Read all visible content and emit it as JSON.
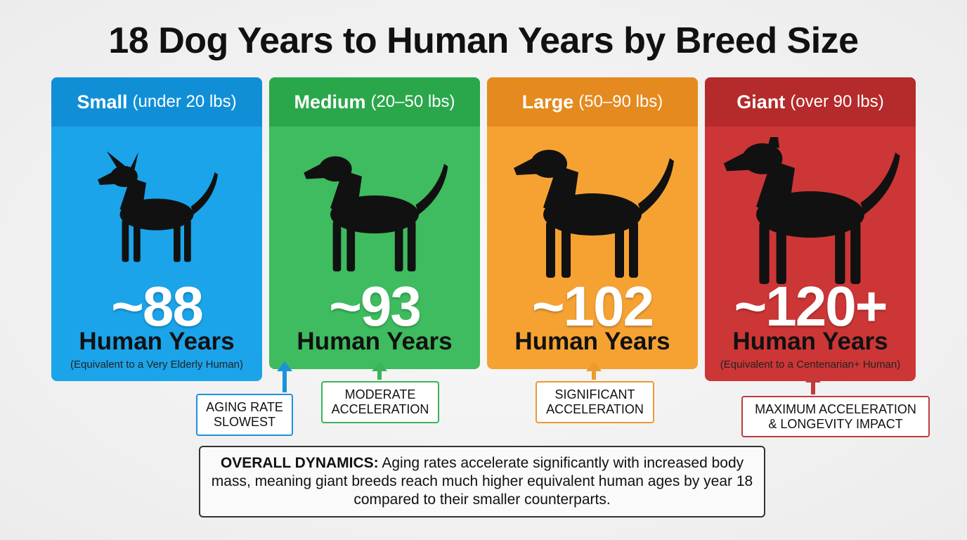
{
  "title": "18 Dog Years to Human Years by Breed Size",
  "cards": [
    {
      "name": "Small",
      "range": "(under 20 lbs)",
      "age": "~88",
      "unit": "Human Years",
      "note": "(Equivalent to a Very Elderly Human)",
      "callout_lines": [
        "AGING RATE",
        "SLOWEST"
      ]
    },
    {
      "name": "Medium",
      "range": "(20–50 lbs)",
      "age": "~93",
      "unit": "Human Years",
      "callout_lines": [
        "MODERATE",
        "ACCELERATION"
      ]
    },
    {
      "name": "Large",
      "range": "(50–90 lbs)",
      "age": "~102",
      "unit": "Human Years",
      "callout_lines": [
        "SIGNIFICANT",
        "ACCELERATION"
      ]
    },
    {
      "name": "Giant",
      "range": "(over 90 lbs)",
      "age": "~120+",
      "unit": "Human Years",
      "note": "(Equivalent to a Centenarian+ Human)",
      "callout_lines": [
        "MAXIMUM ACCELERATION",
        "& LONGEVITY IMPACT"
      ]
    }
  ],
  "summary": {
    "label": "OVERALL DYNAMICS:",
    "text": "Aging rates accelerate significantly with increased body mass, meaning giant breeds reach much higher equivalent human ages by year 18 compared to their smaller counterparts."
  }
}
